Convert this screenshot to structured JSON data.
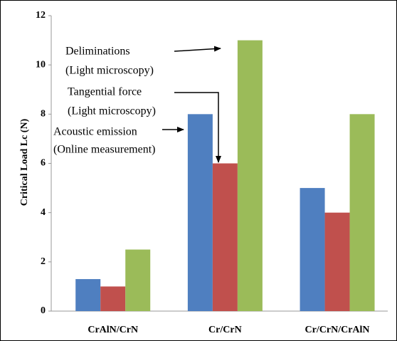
{
  "chart_data": {
    "type": "bar",
    "ylabel": "Critical Load Lc (N)",
    "categories": [
      "CrAlN/CrN",
      "Cr/CrN",
      "Cr/CrN/CrAlN"
    ],
    "series": [
      {
        "name": "Acoustic emission",
        "method": "(Online measurement)",
        "color": "#4f7fc0",
        "values": [
          1.3,
          8,
          5
        ]
      },
      {
        "name": "Tangential force",
        "method": "(Light microscopy)",
        "color": "#c0504d",
        "values": [
          1,
          6,
          4
        ]
      },
      {
        "name": "Deliminations",
        "method": "(Light microscopy)",
        "color": "#9bbb59",
        "values": [
          2.5,
          11,
          8
        ]
      }
    ],
    "ylim": [
      0,
      12
    ],
    "yticks": [
      0,
      2,
      4,
      6,
      8,
      10,
      12
    ],
    "grid": false
  }
}
